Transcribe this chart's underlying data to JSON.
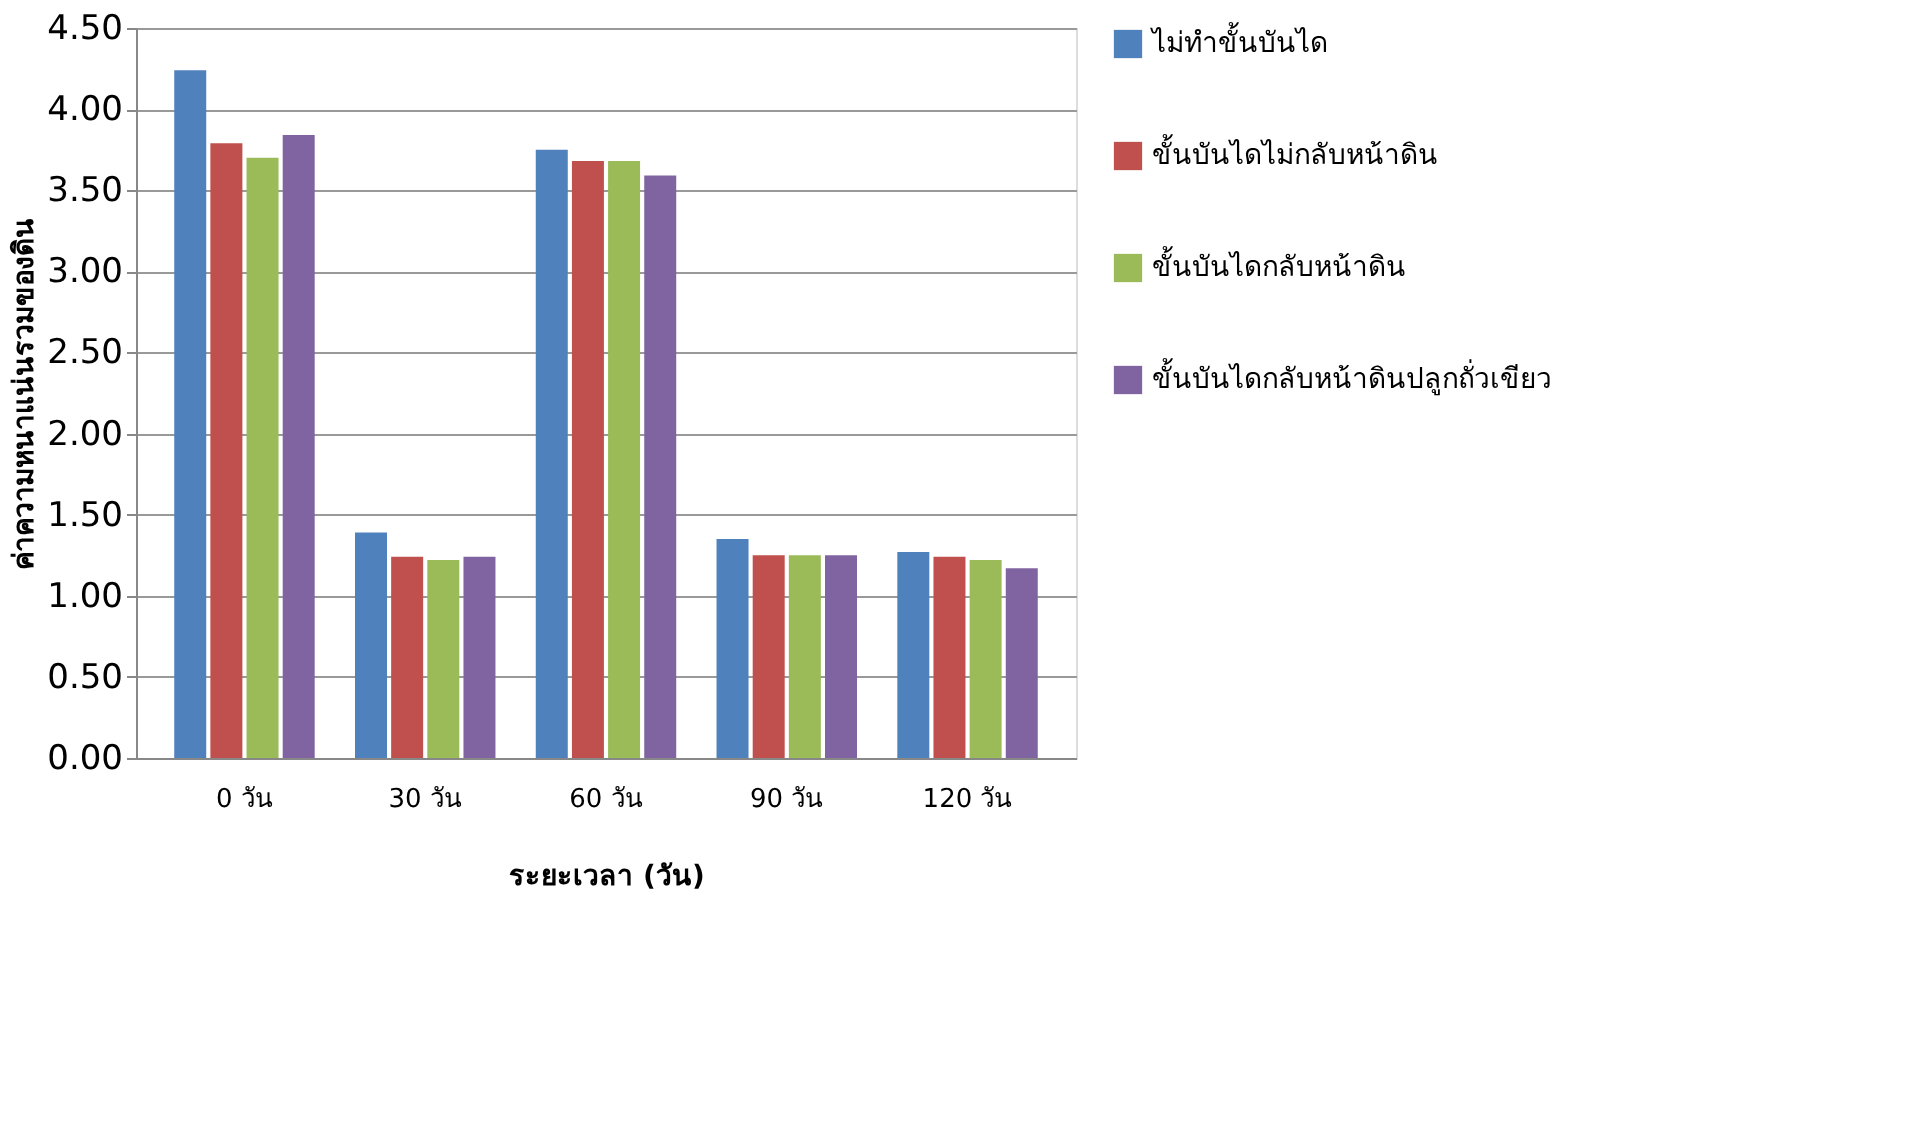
{
  "chart_data": {
    "type": "bar",
    "categories": [
      "0 วัน",
      "30 วัน",
      "60 วัน",
      "90 วัน",
      "120 วัน"
    ],
    "xlabel": "ระยะเวลา (วัน)",
    "ylabel": "ค่าความหนาแน่นรวมของดิน",
    "ylim": [
      0,
      4.5
    ],
    "yticks": [
      {
        "value": 0,
        "label": "0.00"
      },
      {
        "value": 0.5,
        "label": "0.50"
      },
      {
        "value": 1,
        "label": "1.00"
      },
      {
        "value": 1.5,
        "label": "1.50"
      },
      {
        "value": 2,
        "label": "2.00"
      },
      {
        "value": 2.5,
        "label": "2.50"
      },
      {
        "value": 3,
        "label": "3.00"
      },
      {
        "value": 3.5,
        "label": "3.50"
      },
      {
        "value": 4,
        "label": "4.00"
      },
      {
        "value": 4.5,
        "label": "4.50"
      }
    ],
    "grid": "y",
    "legend": "right",
    "series": [
      {
        "name": "ไม่ทำขั้นบันได",
        "color": "#4f81bd",
        "values": [
          4.24,
          1.39,
          3.75,
          1.35,
          1.27
        ]
      },
      {
        "name": "ขั้นบันไดไม่กลับหน้าดิน",
        "color": "#c0504d",
        "values": [
          3.79,
          1.24,
          3.68,
          1.25,
          1.24
        ]
      },
      {
        "name": "ขั้นบันไดกลับหน้าดิน",
        "color": "#9bbb59",
        "values": [
          3.7,
          1.22,
          3.68,
          1.25,
          1.22
        ]
      },
      {
        "name": "ขั้นบันไดกลับหน้าดินปลูกถั่วเขียว",
        "color": "#8064a2",
        "values": [
          3.84,
          1.24,
          3.59,
          1.25,
          1.17
        ]
      }
    ]
  }
}
